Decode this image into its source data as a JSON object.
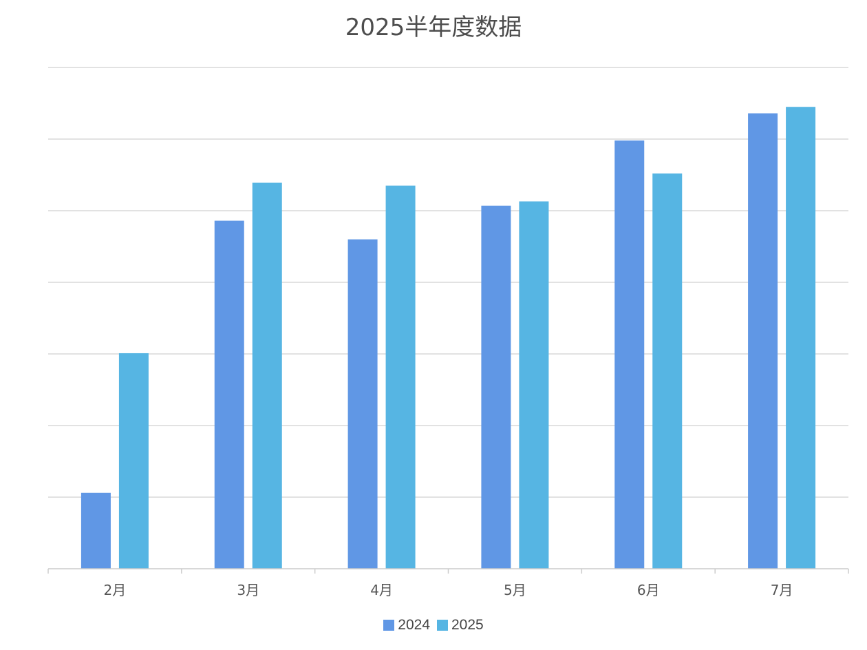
{
  "chart_data": {
    "type": "bar",
    "title": "2025半年度数据",
    "categories": [
      "2月",
      "3月",
      "4月",
      "5月",
      "6月",
      "7月"
    ],
    "series": [
      {
        "name": "2024",
        "color": "#6097e5",
        "values": [
          10.6,
          48.6,
          46.0,
          50.7,
          59.8,
          63.6
        ]
      },
      {
        "name": "2025",
        "color": "#56b5e3",
        "values": [
          30.1,
          53.9,
          53.5,
          51.3,
          55.2,
          64.5
        ]
      }
    ],
    "ylim": [
      0,
      70
    ],
    "y_gridlines": [
      10,
      20,
      30,
      40,
      50,
      60,
      70
    ],
    "y_tick_labels_shown": false,
    "grid": true,
    "legend_position": "bottom",
    "xlabel": "",
    "ylabel": ""
  }
}
